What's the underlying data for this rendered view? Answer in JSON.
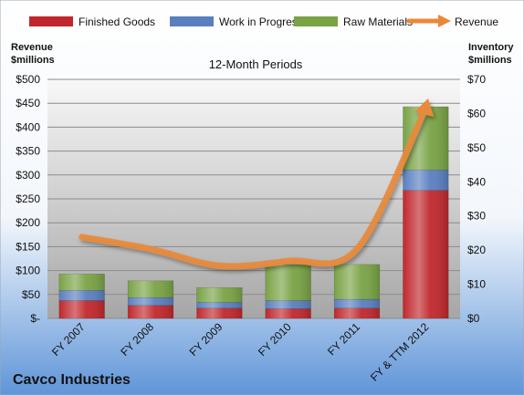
{
  "chart_data": {
    "type": "bar",
    "subtitle": "12-Month Periods",
    "company": "Cavco Industries",
    "left_axis": {
      "label_line1": "Revenue",
      "label_line2": "$millions",
      "ylim": [
        0,
        500
      ],
      "ticks": [
        "$-",
        "$50",
        "$100",
        "$150",
        "$200",
        "$250",
        "$300",
        "$350",
        "$400",
        "$450",
        "$500"
      ]
    },
    "right_axis": {
      "label_line1": "Inventory",
      "label_line2": "$millions",
      "ylim": [
        0,
        70
      ],
      "ticks": [
        "$0",
        "$10",
        "$20",
        "$30",
        "$40",
        "$50",
        "$60",
        "$70"
      ]
    },
    "categories": [
      "FY 2007",
      "FY 2008",
      "FY 2009",
      "FY 2010",
      "FY 2011",
      "FY & TTM 2012"
    ],
    "series": [
      {
        "name": "Finished Goods",
        "axis": "right",
        "color": "#c0282d",
        "values": [
          5.2,
          3.8,
          3.0,
          2.8,
          3.0,
          37.5
        ]
      },
      {
        "name": "Work in Progress",
        "axis": "right",
        "color": "#5a7fbf",
        "values": [
          3.0,
          2.3,
          1.7,
          2.4,
          2.6,
          6.0
        ]
      },
      {
        "name": "Raw Materials",
        "axis": "right",
        "color": "#79a345",
        "values": [
          4.8,
          4.9,
          4.3,
          10.5,
          10.2,
          18.5
        ]
      },
      {
        "name": "Revenue",
        "axis": "left",
        "type": "line",
        "color": "#e8893a",
        "values": [
          170,
          145,
          110,
          120,
          145,
          440
        ]
      }
    ],
    "grid": true,
    "legend": "top"
  }
}
